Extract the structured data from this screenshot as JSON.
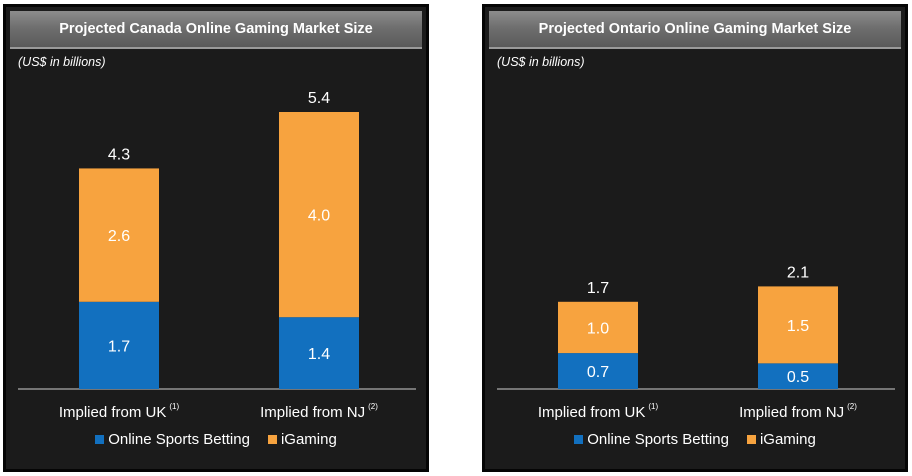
{
  "chart_data": [
    {
      "type": "bar",
      "stacked": true,
      "title": "Projected Canada Online Gaming Market Size",
      "units_note": "(US$ in billions)",
      "categories": [
        "Implied from UK",
        "Implied from NJ"
      ],
      "category_footnotes": [
        "(1)",
        "(2)"
      ],
      "series": [
        {
          "name": "Online Sports Betting",
          "values": [
            1.7,
            1.4
          ],
          "color": "#1270bf"
        },
        {
          "name": "iGaming",
          "values": [
            2.6,
            4.0
          ],
          "color": "#f7a33f"
        }
      ],
      "totals": [
        4.3,
        5.4
      ],
      "ylim": [
        0,
        5.4
      ],
      "grid": false,
      "legend_position": "bottom"
    },
    {
      "type": "bar",
      "stacked": true,
      "title": "Projected Ontario Online Gaming Market Size",
      "units_note": "(US$ in billions)",
      "categories": [
        "Implied from UK",
        "Implied from NJ"
      ],
      "category_footnotes": [
        "(1)",
        "(2)"
      ],
      "series": [
        {
          "name": "Online Sports Betting",
          "values": [
            0.7,
            0.5
          ],
          "color": "#1270bf"
        },
        {
          "name": "iGaming",
          "values": [
            1.0,
            1.5
          ],
          "color": "#f7a33f"
        }
      ],
      "totals": [
        1.7,
        2.1
      ],
      "ylim": [
        0,
        5.4
      ],
      "grid": false,
      "legend_position": "bottom"
    }
  ]
}
